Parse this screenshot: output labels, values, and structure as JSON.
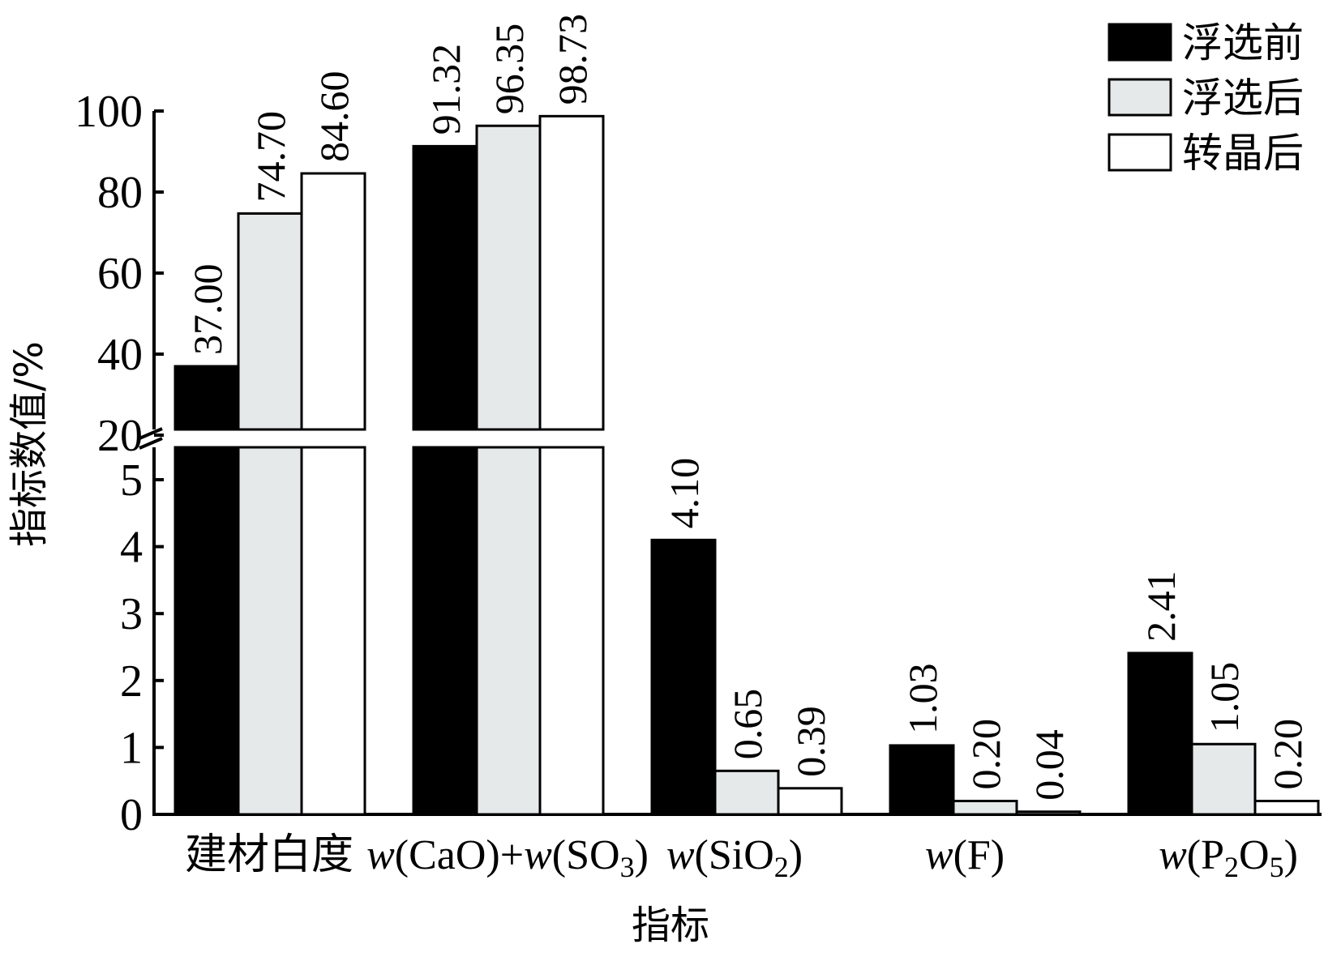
{
  "chart_data": {
    "type": "bar",
    "xlabel": "指标",
    "ylabel": "指标数值/%",
    "categories": [
      {
        "parts": [
          {
            "t": "建材白度"
          }
        ]
      },
      {
        "parts": [
          {
            "t": "w",
            "i": true
          },
          {
            "t": "(CaO)+"
          },
          {
            "t": "w",
            "i": true
          },
          {
            "t": "(SO"
          },
          {
            "t": "3",
            "sub": true
          },
          {
            "t": ")"
          }
        ]
      },
      {
        "parts": [
          {
            "t": "w",
            "i": true
          },
          {
            "t": "(SiO"
          },
          {
            "t": "2",
            "sub": true
          },
          {
            "t": ")"
          }
        ]
      },
      {
        "parts": [
          {
            "t": "w",
            "i": true
          },
          {
            "t": "(F)"
          }
        ]
      },
      {
        "parts": [
          {
            "t": "w",
            "i": true
          },
          {
            "t": "(P"
          },
          {
            "t": "2",
            "sub": true
          },
          {
            "t": "O"
          },
          {
            "t": "5",
            "sub": true
          },
          {
            "t": ")"
          }
        ]
      }
    ],
    "series": [
      {
        "name": "浮选前",
        "color": "#000000",
        "values": [
          37.0,
          91.32,
          4.1,
          1.03,
          2.41
        ]
      },
      {
        "name": "浮选后",
        "color": "#e6e9ea",
        "values": [
          74.7,
          96.35,
          0.65,
          0.2,
          1.05
        ]
      },
      {
        "name": "转晶后",
        "color": "#ffffff",
        "values": [
          84.6,
          98.73,
          0.39,
          0.04,
          0.2
        ]
      }
    ],
    "data_labels": [
      [
        "37.00",
        "91.32",
        "4.10",
        "1.03",
        "2.41"
      ],
      [
        "74.70",
        "96.35",
        "0.65",
        "0.20",
        "1.05"
      ],
      [
        "84.60",
        "98.73",
        "0.39",
        "0.04",
        "0.20"
      ]
    ],
    "y_axis": {
      "broken": true,
      "lower": {
        "range": [
          0,
          5
        ],
        "ticks": [
          "0",
          "1",
          "2",
          "3",
          "4",
          "5"
        ]
      },
      "upper": {
        "range": [
          20,
          100
        ],
        "ticks": [
          "20",
          "40",
          "60",
          "80",
          "100"
        ]
      }
    },
    "legend": {
      "position": "top-right"
    },
    "grid": false
  }
}
